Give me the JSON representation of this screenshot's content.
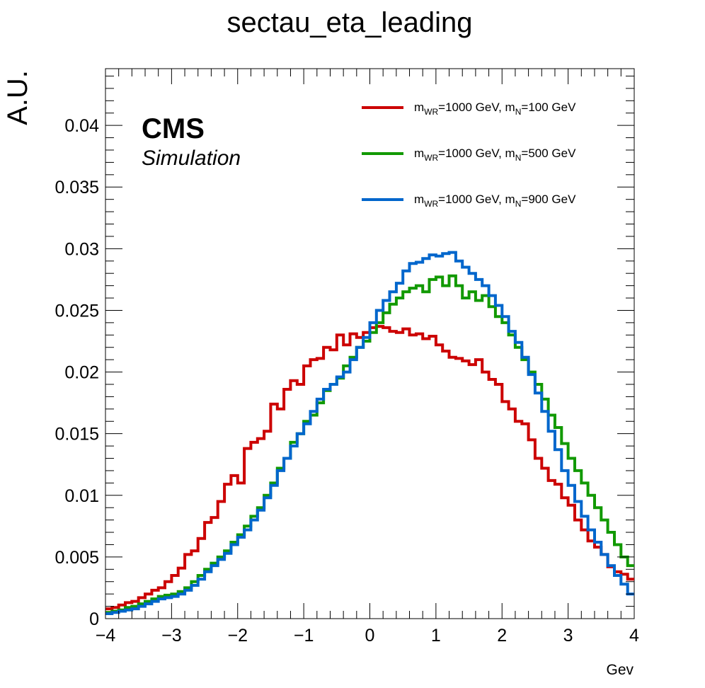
{
  "chart_data": {
    "type": "line",
    "style": "step-histogram",
    "title": "sectau_eta_leading",
    "xlabel": "Gev",
    "ylabel": "A.U.",
    "xlim": [
      -4,
      4
    ],
    "ylim": [
      0,
      0.0446
    ],
    "grid": false,
    "legend_position": "top-right",
    "xticks": [
      "−4",
      "−3",
      "−2",
      "−1",
      "0",
      "1",
      "2",
      "3",
      "4"
    ],
    "yticks": [
      "0",
      "0.005",
      "0.01",
      "0.015",
      "0.02",
      "0.025",
      "0.03",
      "0.035",
      "0.04"
    ],
    "annotations": {
      "cms": "CMS",
      "simulation": "Simulation"
    },
    "bin_width": 0.1,
    "x": [
      -4.0,
      -3.9,
      -3.8,
      -3.7,
      -3.6,
      -3.5,
      -3.4,
      -3.3,
      -3.2,
      -3.1,
      -3.0,
      -2.9,
      -2.8,
      -2.7,
      -2.6,
      -2.5,
      -2.4,
      -2.3,
      -2.2,
      -2.1,
      -2.0,
      -1.9,
      -1.8,
      -1.7,
      -1.6,
      -1.5,
      -1.4,
      -1.3,
      -1.2,
      -1.1,
      -1.0,
      -0.9,
      -0.8,
      -0.7,
      -0.6,
      -0.5,
      -0.4,
      -0.3,
      -0.2,
      -0.1,
      0.0,
      0.1,
      0.2,
      0.3,
      0.4,
      0.5,
      0.6,
      0.7,
      0.8,
      0.9,
      1.0,
      1.1,
      1.2,
      1.3,
      1.4,
      1.5,
      1.6,
      1.7,
      1.8,
      1.9,
      2.0,
      2.1,
      2.2,
      2.3,
      2.4,
      2.5,
      2.6,
      2.7,
      2.8,
      2.9,
      3.0,
      3.1,
      3.2,
      3.3,
      3.4,
      3.5,
      3.6,
      3.7,
      3.8,
      3.9
    ],
    "series": [
      {
        "label_main": "m",
        "label_sub1": "WR",
        "label_mid": "=1000 GeV, m",
        "label_sub2": "N",
        "label_end": "=100 GeV",
        "color": "#cc0000",
        "values": [
          0.0008,
          0.0009,
          0.0011,
          0.0013,
          0.0014,
          0.0017,
          0.002,
          0.0023,
          0.0025,
          0.003,
          0.0035,
          0.0041,
          0.0052,
          0.0055,
          0.0065,
          0.0078,
          0.0082,
          0.0095,
          0.0109,
          0.0116,
          0.011,
          0.0138,
          0.0143,
          0.0146,
          0.0152,
          0.0174,
          0.017,
          0.0186,
          0.0193,
          0.019,
          0.0205,
          0.021,
          0.0211,
          0.022,
          0.0218,
          0.023,
          0.0222,
          0.0231,
          0.0228,
          0.0232,
          0.0236,
          0.0237,
          0.0236,
          0.0233,
          0.0232,
          0.0235,
          0.023,
          0.0231,
          0.0227,
          0.0229,
          0.0222,
          0.0217,
          0.0212,
          0.0211,
          0.0209,
          0.0206,
          0.021,
          0.02,
          0.0194,
          0.019,
          0.0176,
          0.017,
          0.016,
          0.0158,
          0.0145,
          0.013,
          0.0122,
          0.0112,
          0.0109,
          0.0098,
          0.0092,
          0.008,
          0.0072,
          0.0063,
          0.0058,
          0.0052,
          0.0042,
          0.0038,
          0.0036,
          0.0032
        ]
      },
      {
        "label_main": "m",
        "label_sub1": "WR",
        "label_mid": "=1000 GeV, m",
        "label_sub2": "N",
        "label_end": "=500 GeV",
        "color": "#119900",
        "values": [
          0.0005,
          0.0006,
          0.0007,
          0.0009,
          0.001,
          0.0012,
          0.0014,
          0.0016,
          0.0018,
          0.0019,
          0.002,
          0.0022,
          0.0025,
          0.003,
          0.0035,
          0.004,
          0.0045,
          0.005,
          0.0055,
          0.0062,
          0.0068,
          0.0075,
          0.0083,
          0.009,
          0.01,
          0.011,
          0.0122,
          0.013,
          0.0143,
          0.015,
          0.016,
          0.0165,
          0.0175,
          0.0185,
          0.019,
          0.0195,
          0.0205,
          0.0212,
          0.022,
          0.0225,
          0.0232,
          0.024,
          0.0248,
          0.0255,
          0.026,
          0.0265,
          0.0268,
          0.027,
          0.0265,
          0.0275,
          0.0277,
          0.027,
          0.0278,
          0.027,
          0.026,
          0.0265,
          0.0258,
          0.0262,
          0.0253,
          0.0245,
          0.024,
          0.023,
          0.022,
          0.021,
          0.02,
          0.019,
          0.0178,
          0.0165,
          0.0155,
          0.0142,
          0.013,
          0.012,
          0.011,
          0.01,
          0.009,
          0.008,
          0.007,
          0.006,
          0.005,
          0.0043
        ]
      },
      {
        "label_main": "m",
        "label_sub1": "WR",
        "label_mid": "=1000 GeV, m",
        "label_sub2": "N",
        "label_end": "=900 GeV",
        "color": "#0066cc",
        "values": [
          0.0004,
          0.0005,
          0.0006,
          0.0007,
          0.0008,
          0.001,
          0.0012,
          0.0014,
          0.0016,
          0.0017,
          0.0018,
          0.002,
          0.0023,
          0.0027,
          0.0032,
          0.0038,
          0.0043,
          0.0048,
          0.0053,
          0.006,
          0.0066,
          0.0072,
          0.008,
          0.0088,
          0.0098,
          0.0108,
          0.012,
          0.013,
          0.014,
          0.015,
          0.0158,
          0.0168,
          0.0178,
          0.0186,
          0.019,
          0.0196,
          0.02,
          0.021,
          0.022,
          0.0228,
          0.024,
          0.025,
          0.0258,
          0.0265,
          0.0272,
          0.0282,
          0.0288,
          0.0289,
          0.0292,
          0.0295,
          0.0294,
          0.0296,
          0.0297,
          0.029,
          0.0285,
          0.028,
          0.0275,
          0.027,
          0.0262,
          0.0254,
          0.0245,
          0.0233,
          0.0224,
          0.0212,
          0.0198,
          0.0183,
          0.0168,
          0.0152,
          0.0137,
          0.012,
          0.0108,
          0.0095,
          0.0083,
          0.0072,
          0.0062,
          0.0052,
          0.0043,
          0.0035,
          0.0028,
          0.002
        ]
      }
    ]
  }
}
